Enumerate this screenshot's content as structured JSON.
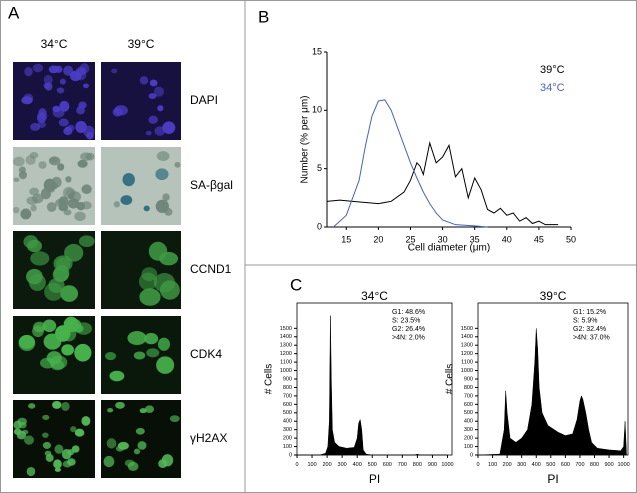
{
  "panel_a": {
    "label": "A",
    "columns": [
      "34°C",
      "39°C"
    ],
    "rows": [
      "DAPI",
      "SA-βgal",
      "CCND1",
      "CDK4",
      "γH2AX"
    ]
  },
  "chart_data": [
    {
      "type": "line",
      "label": "B",
      "xlabel": "Cell diameter (μm)",
      "ylabel": "Number (% per μm)",
      "xlim": [
        12,
        50
      ],
      "xticks": [
        15,
        20,
        25,
        30,
        35,
        40,
        45,
        50
      ],
      "ylim": [
        0,
        15
      ],
      "yticks": [
        0,
        5,
        10,
        15
      ],
      "series": [
        {
          "name": "39°C",
          "color": "#000000",
          "x": [
            12,
            14,
            16,
            18,
            20,
            22,
            24,
            25,
            26,
            26.5,
            27,
            28,
            29,
            30,
            31,
            32,
            33,
            34,
            35,
            36,
            37,
            38,
            39,
            40,
            41,
            42,
            43,
            44,
            45,
            46,
            48
          ],
          "values": [
            2.2,
            2.3,
            2.2,
            2.1,
            2.0,
            2.2,
            3.0,
            4.0,
            5.5,
            5.2,
            4.5,
            7.2,
            5.5,
            6.0,
            7.0,
            4.3,
            5.0,
            2.5,
            4.2,
            3.2,
            1.5,
            1.2,
            1.6,
            1.0,
            1.2,
            0.5,
            0.8,
            0.3,
            0.5,
            0.2,
            0.2
          ]
        },
        {
          "name": "34°C",
          "color": "#4a62b8",
          "x": [
            13,
            15,
            17,
            18,
            19,
            20,
            21,
            22,
            23,
            24,
            25,
            26,
            27,
            28,
            29,
            30,
            32,
            35,
            37
          ],
          "values": [
            0,
            1,
            4,
            7,
            9.5,
            10.8,
            10.9,
            10,
            8.5,
            7,
            5.5,
            4.2,
            3,
            2,
            1.2,
            0.6,
            0.2,
            0.1,
            0
          ]
        }
      ]
    },
    {
      "type": "area",
      "label": "C",
      "title": "34°C",
      "xlabel": "PI",
      "ylabel": "# Cells",
      "annotations": [
        "G1: 48.6%",
        "S: 23.5%",
        "G2: 26.4%",
        ">4N: 2.0%"
      ],
      "xlim": [
        0,
        1030
      ],
      "xticks": [
        0,
        100,
        200,
        300,
        400,
        500,
        600,
        700,
        800,
        900,
        1000
      ],
      "ylim": [
        0,
        1800
      ],
      "yticks": [
        0,
        100,
        200,
        300,
        400,
        500,
        600,
        700,
        800,
        900,
        1000,
        1100,
        1200,
        1300,
        1400,
        1500
      ],
      "color": "#000000",
      "x": [
        0,
        150,
        190,
        205,
        215,
        222,
        228,
        235,
        250,
        280,
        330,
        380,
        400,
        410,
        420,
        430,
        440,
        460,
        500,
        780,
        800,
        820,
        1000
      ],
      "values": [
        0,
        0,
        20,
        100,
        400,
        1650,
        900,
        300,
        150,
        100,
        80,
        90,
        200,
        380,
        420,
        300,
        60,
        10,
        0,
        0,
        10,
        0,
        0
      ]
    },
    {
      "type": "area",
      "title": "39°C",
      "xlabel": "PI",
      "ylabel": "# Cells",
      "annotations": [
        "G1: 15.2%",
        "S: 5.9%",
        "G2: 32.4%",
        ">4N: 37.0%"
      ],
      "xlim": [
        0,
        1030
      ],
      "xticks": [
        0,
        100,
        200,
        300,
        400,
        500,
        600,
        700,
        800,
        900,
        1000
      ],
      "ylim": [
        0,
        1800
      ],
      "yticks": [
        0,
        100,
        200,
        300,
        400,
        500,
        600,
        700,
        800,
        900,
        1000,
        1100,
        1200,
        1300,
        1400,
        1500
      ],
      "color": "#000000",
      "x": [
        0,
        150,
        180,
        190,
        200,
        220,
        260,
        300,
        340,
        370,
        390,
        400,
        410,
        420,
        440,
        480,
        550,
        600,
        650,
        680,
        700,
        710,
        720,
        740,
        760,
        780,
        820,
        900,
        980,
        1000,
        1010,
        1020
      ],
      "values": [
        0,
        10,
        300,
        760,
        500,
        200,
        150,
        200,
        300,
        600,
        1100,
        1500,
        1250,
        800,
        500,
        350,
        270,
        230,
        250,
        420,
        640,
        700,
        660,
        500,
        300,
        150,
        80,
        60,
        50,
        100,
        400,
        0
      ]
    }
  ]
}
